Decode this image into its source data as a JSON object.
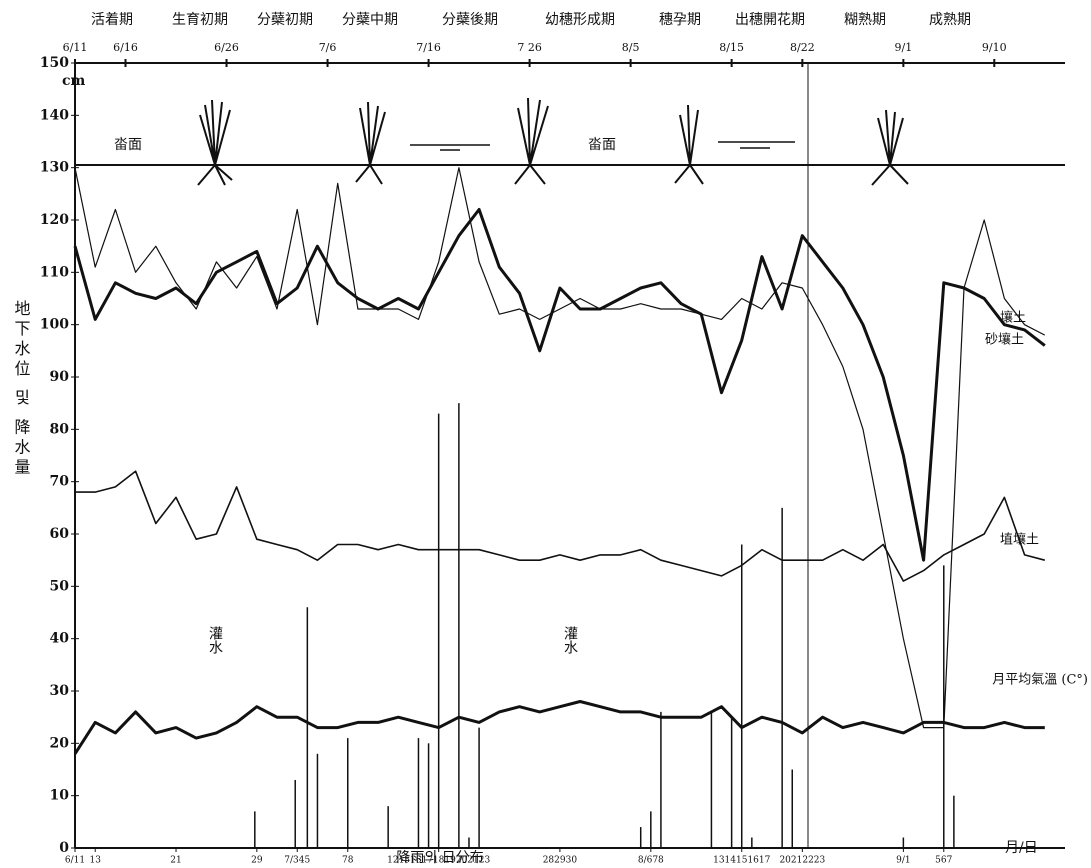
{
  "chart_data": {
    "type": "line",
    "y_label": "地下水位 및 降水量",
    "y_unit": "cm",
    "x_unit": "月/日",
    "stages": [
      "活着期",
      "生育初期",
      "分蘗初期",
      "分蘗中期",
      "分蘗後期",
      "幼穗形成期",
      "穗孕期",
      "出穗開花期",
      "糊熟期",
      "成熟期"
    ],
    "annotations": [
      "畓面",
      "畓面",
      "灌水",
      "灌水"
    ],
    "xlim": [
      0,
      98
    ],
    "ylim": [
      0,
      150
    ],
    "yticks": [
      0,
      10,
      20,
      30,
      40,
      50,
      60,
      70,
      80,
      90,
      100,
      110,
      120,
      130,
      140,
      150
    ],
    "xticks": [
      {
        "value": 0,
        "label": "6/11"
      },
      {
        "value": 5,
        "label": "6/16"
      },
      {
        "value": 15,
        "label": "6/26"
      },
      {
        "value": 25,
        "label": "7/6"
      },
      {
        "value": 35,
        "label": "7/16"
      },
      {
        "value": 45,
        "label": "7 26"
      },
      {
        "value": 55,
        "label": "8/5"
      },
      {
        "value": 65,
        "label": "8/15"
      },
      {
        "value": 72,
        "label": "8/22"
      },
      {
        "value": 82,
        "label": "9/1"
      },
      {
        "value": 91,
        "label": "9/10"
      }
    ],
    "x2ticks": [
      {
        "value": 0,
        "label": "6/11"
      },
      {
        "value": 2,
        "label": "13"
      },
      {
        "value": 10,
        "label": "21"
      },
      {
        "value": 18,
        "label": "29"
      },
      {
        "value": 22,
        "label": "7/345"
      },
      {
        "value": 27,
        "label": "78"
      },
      {
        "value": 36,
        "label": "121516171819202123"
      },
      {
        "value": 48,
        "label": "282930"
      },
      {
        "value": 57,
        "label": "8/678"
      },
      {
        "value": 66,
        "label": "1314151617"
      },
      {
        "value": 72,
        "label": "20212223"
      },
      {
        "value": 82,
        "label": "9/1"
      },
      {
        "value": 86,
        "label": "567"
      }
    ],
    "x": [
      0,
      2,
      4,
      6,
      8,
      10,
      12,
      14,
      16,
      18,
      20,
      22,
      24,
      26,
      28,
      30,
      32,
      34,
      36,
      38,
      40,
      42,
      44,
      46,
      48,
      50,
      52,
      54,
      56,
      58,
      60,
      62,
      64,
      66,
      68,
      70,
      72,
      74,
      76,
      78,
      80,
      82,
      84,
      86,
      88,
      90,
      92,
      94,
      96
    ],
    "series": [
      {
        "name": "壤土",
        "color": "#111111",
        "width": 3,
        "values": [
          115,
          101,
          108,
          106,
          105,
          107,
          104,
          110,
          112,
          114,
          104,
          107,
          115,
          108,
          105,
          103,
          105,
          103,
          110,
          117,
          122,
          111,
          106,
          95,
          107,
          103,
          103,
          105,
          107,
          108,
          104,
          102,
          87,
          97,
          113,
          103,
          117,
          112,
          107,
          100,
          90,
          75,
          55,
          108,
          107,
          105,
          100,
          99,
          96
        ]
      },
      {
        "name": "砂壤土",
        "color": "#111111",
        "width": 1.2,
        "values": [
          130,
          111,
          122,
          110,
          115,
          108,
          103,
          112,
          107,
          113,
          103,
          122,
          100,
          127,
          103,
          103,
          103,
          101,
          112,
          130,
          112,
          102,
          103,
          101,
          103,
          105,
          103,
          103,
          104,
          103,
          103,
          102,
          101,
          105,
          103,
          108,
          107,
          100,
          92,
          80,
          60,
          40,
          23,
          23,
          107,
          120,
          105,
          100,
          98
        ]
      },
      {
        "name": "埴壤土",
        "color": "#111111",
        "width": 1.6,
        "values": [
          68,
          68,
          69,
          72,
          62,
          67,
          59,
          60,
          69,
          59,
          58,
          57,
          55,
          58,
          58,
          57,
          58,
          57,
          57,
          57,
          57,
          56,
          55,
          55,
          56,
          55,
          56,
          56,
          57,
          55,
          54,
          53,
          52,
          54,
          57,
          55,
          55,
          55,
          57,
          55,
          58,
          51,
          53,
          56,
          58,
          60,
          67,
          56,
          55
        ]
      },
      {
        "name": "月平均氣溫 (C°)",
        "color": "#111111",
        "width": 3,
        "values": [
          18,
          24,
          22,
          26,
          22,
          23,
          21,
          22,
          24,
          27,
          25,
          25,
          23,
          23,
          24,
          24,
          25,
          24,
          23,
          25,
          24,
          26,
          27,
          26,
          27,
          28,
          27,
          26,
          26,
          25,
          25,
          25,
          27,
          23,
          25,
          24,
          22,
          25,
          23,
          24,
          23,
          22,
          24,
          24,
          23,
          23,
          24,
          23,
          23
        ]
      }
    ],
    "rainfall": {
      "name": "降雨의 日分布",
      "color": "#111111",
      "x": [
        17.8,
        21.8,
        23,
        24,
        27,
        31,
        34,
        35,
        36,
        38,
        39,
        40,
        56,
        57,
        58,
        63,
        65,
        66,
        67,
        70,
        71,
        82,
        86,
        87
      ],
      "values": [
        7,
        13,
        46,
        18,
        21,
        8,
        21,
        20,
        83,
        85,
        2,
        23,
        4,
        7,
        26,
        26,
        25,
        58,
        2,
        65,
        15,
        2,
        54,
        10
      ]
    }
  }
}
